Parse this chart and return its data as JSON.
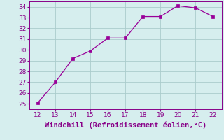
{
  "x": [
    12,
    13,
    14,
    15,
    16,
    17,
    18,
    19,
    20,
    21,
    22
  ],
  "y": [
    25.1,
    27.0,
    29.2,
    29.9,
    31.1,
    31.1,
    33.1,
    33.1,
    34.1,
    33.9,
    33.1
  ],
  "line_color": "#990099",
  "marker": "s",
  "marker_size": 2.5,
  "xlabel": "Windchill (Refroidissement éolien,°C)",
  "xlabel_color": "#880088",
  "bg_color": "#d6eeee",
  "grid_color": "#aacccc",
  "tick_color": "#880088",
  "xlim": [
    11.5,
    22.5
  ],
  "ylim": [
    24.5,
    34.5
  ],
  "xticks": [
    12,
    13,
    14,
    15,
    16,
    17,
    18,
    19,
    20,
    21,
    22
  ],
  "yticks": [
    25,
    26,
    27,
    28,
    29,
    30,
    31,
    32,
    33,
    34
  ],
  "tick_fontsize": 6.5,
  "xlabel_fontsize": 7.5
}
